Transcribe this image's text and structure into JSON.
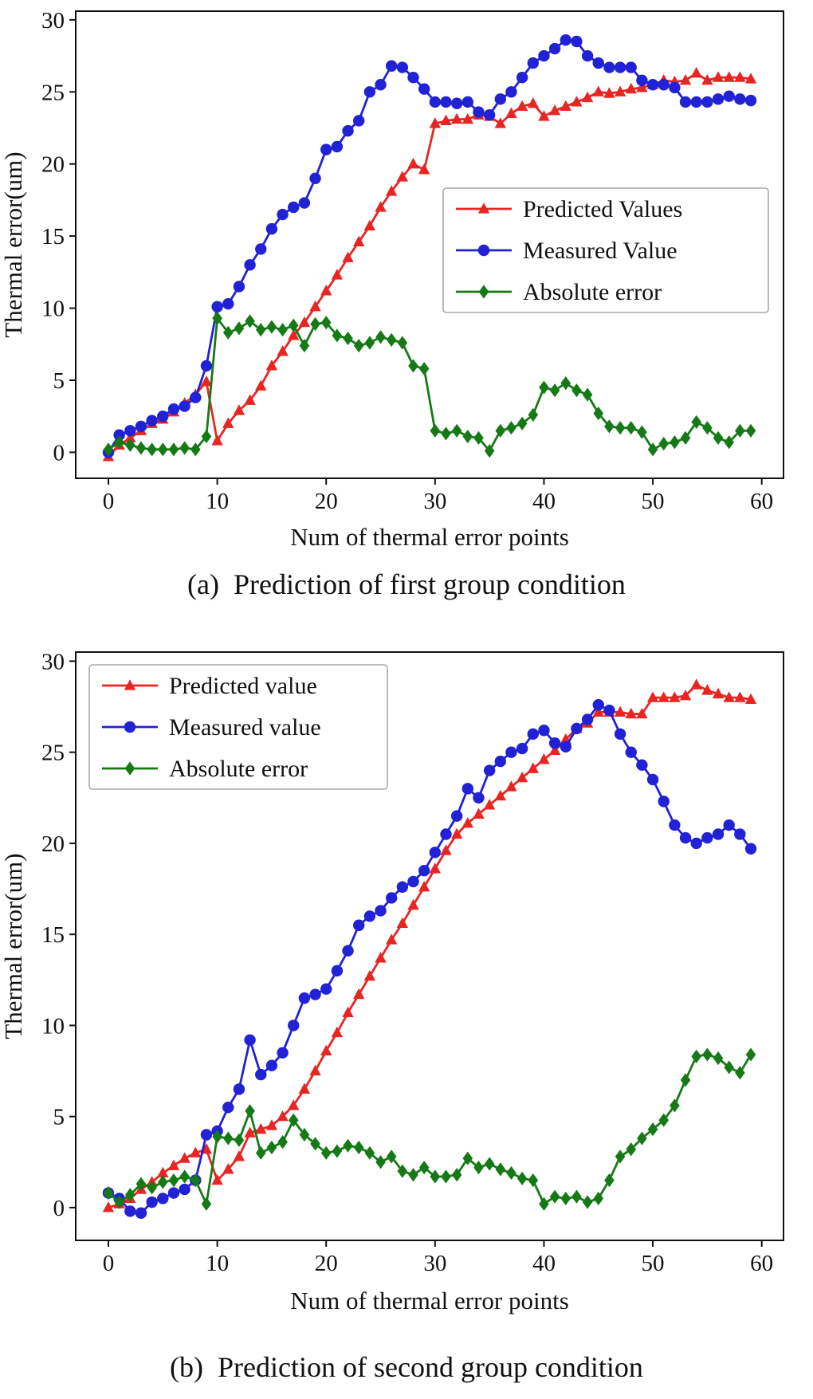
{
  "page": {
    "background": "#ffffff"
  },
  "chart_data": [
    {
      "id": "first-group",
      "type": "line",
      "caption": "(a)  Prediction of first group condition",
      "xlabel": "Num of thermal error points",
      "ylabel": "Thermal error(um)",
      "xlim": [
        -3,
        62
      ],
      "ylim": [
        -1.8,
        30.6
      ],
      "xticks": [
        0,
        10,
        20,
        30,
        40,
        50,
        60
      ],
      "yticks": [
        0,
        5,
        10,
        15,
        20,
        25,
        30
      ],
      "grid": false,
      "x_start": 0,
      "x_step": 1,
      "n_points": 60,
      "legend_position": "upper right",
      "series": [
        {
          "id": "predicted",
          "name": "Predicted Values",
          "color": "#e82522",
          "marker": "triangle",
          "values": [
            -0.3,
            0.5,
            1.0,
            1.5,
            2.0,
            2.3,
            2.8,
            3.4,
            4.0,
            4.9,
            0.8,
            2.0,
            2.9,
            3.6,
            4.6,
            6.0,
            7.0,
            8.1,
            9.0,
            10.1,
            11.2,
            12.3,
            13.5,
            14.6,
            15.7,
            17.0,
            18.1,
            19.1,
            20.0,
            19.6,
            22.8,
            23.0,
            23.1,
            23.1,
            23.4,
            23.3,
            22.8,
            23.5,
            24.0,
            24.2,
            23.3,
            23.7,
            24.0,
            24.3,
            24.6,
            25.0,
            24.9,
            25.0,
            25.2,
            25.3,
            25.5,
            25.8,
            25.7,
            25.8,
            26.3,
            25.8,
            26.0,
            26.0,
            26.0,
            25.9
          ]
        },
        {
          "id": "measured",
          "name": "Measured Value",
          "color": "#2121d6",
          "marker": "circle",
          "values": [
            0.0,
            1.2,
            1.5,
            1.8,
            2.2,
            2.5,
            3.0,
            3.2,
            3.8,
            6.0,
            10.1,
            10.3,
            11.5,
            13.0,
            14.1,
            15.5,
            16.5,
            17.0,
            17.3,
            19.0,
            21.0,
            21.2,
            22.3,
            23.0,
            25.0,
            25.5,
            26.8,
            26.7,
            26.0,
            25.2,
            24.3,
            24.3,
            24.2,
            24.3,
            23.6,
            23.4,
            24.5,
            25.0,
            26.0,
            27.0,
            27.5,
            28.0,
            28.6,
            28.5,
            27.5,
            27.0,
            26.7,
            26.7,
            26.7,
            25.8,
            25.5,
            25.5,
            25.3,
            24.3,
            24.3,
            24.3,
            24.5,
            24.7,
            24.5,
            24.4
          ]
        },
        {
          "id": "abs-error",
          "name": "Absolute error",
          "color": "#157a15",
          "marker": "diamond",
          "values": [
            0.2,
            0.7,
            0.5,
            0.3,
            0.2,
            0.2,
            0.2,
            0.3,
            0.2,
            1.1,
            9.3,
            8.3,
            8.6,
            9.1,
            8.5,
            8.7,
            8.5,
            8.8,
            7.4,
            8.9,
            9.0,
            8.1,
            7.9,
            7.4,
            7.6,
            8.0,
            7.8,
            7.6,
            6.0,
            5.8,
            1.5,
            1.3,
            1.5,
            1.1,
            1.0,
            0.1,
            1.5,
            1.7,
            2.0,
            2.6,
            4.5,
            4.3,
            4.8,
            4.3,
            4.0,
            2.7,
            1.8,
            1.7,
            1.7,
            1.4,
            0.2,
            0.6,
            0.7,
            1.0,
            2.1,
            1.7,
            1.0,
            0.7,
            1.5,
            1.5
          ]
        }
      ]
    },
    {
      "id": "second-group",
      "type": "line",
      "caption": "(b)  Prediction of second group condition",
      "xlabel": "Num of thermal error points",
      "ylabel": "Thermal error(um)",
      "xlim": [
        -3,
        62
      ],
      "ylim": [
        -1.8,
        30.5
      ],
      "xticks": [
        0,
        10,
        20,
        30,
        40,
        50,
        60
      ],
      "yticks": [
        0,
        5,
        10,
        15,
        20,
        25,
        30
      ],
      "grid": false,
      "x_start": 0,
      "x_step": 1,
      "n_points": 60,
      "legend_position": "upper left",
      "series": [
        {
          "id": "predicted",
          "name": "Predicted value",
          "color": "#e82522",
          "marker": "triangle",
          "values": [
            0.0,
            0.2,
            0.5,
            1.0,
            1.4,
            1.9,
            2.3,
            2.7,
            3.0,
            3.2,
            1.5,
            2.1,
            2.8,
            4.1,
            4.3,
            4.5,
            5.0,
            5.6,
            6.5,
            7.5,
            8.6,
            9.6,
            10.7,
            11.7,
            12.7,
            13.7,
            14.7,
            15.6,
            16.6,
            17.6,
            18.6,
            19.6,
            20.5,
            21.1,
            21.6,
            22.1,
            22.6,
            23.1,
            23.6,
            24.1,
            24.6,
            25.1,
            25.7,
            26.3,
            26.6,
            27.2,
            27.2,
            27.2,
            27.1,
            27.1,
            28.0,
            28.0,
            28.0,
            28.1,
            28.7,
            28.4,
            28.2,
            28.0,
            28.0,
            27.9
          ]
        },
        {
          "id": "measured",
          "name": "Measured value",
          "color": "#2121d6",
          "marker": "circle",
          "values": [
            0.8,
            0.5,
            -0.2,
            -0.3,
            0.3,
            0.5,
            0.8,
            1.0,
            1.5,
            4.0,
            4.2,
            5.5,
            6.5,
            9.2,
            7.3,
            7.8,
            8.5,
            10.0,
            11.5,
            11.7,
            12.0,
            13.0,
            14.1,
            15.5,
            16.0,
            16.3,
            17.0,
            17.6,
            17.9,
            18.5,
            19.5,
            20.5,
            21.5,
            23.0,
            22.5,
            24.0,
            24.5,
            25.0,
            25.2,
            26.0,
            26.2,
            25.5,
            25.3,
            26.3,
            26.8,
            27.6,
            27.3,
            26.0,
            25.0,
            24.3,
            23.5,
            22.3,
            21.0,
            20.3,
            20.0,
            20.3,
            20.5,
            21.0,
            20.5,
            19.7
          ]
        },
        {
          "id": "abs-error",
          "name": "Absolute error",
          "color": "#157a15",
          "marker": "diamond",
          "values": [
            0.8,
            0.3,
            0.7,
            1.3,
            1.1,
            1.4,
            1.5,
            1.7,
            1.5,
            0.2,
            3.9,
            3.8,
            3.7,
            5.3,
            3.0,
            3.3,
            3.6,
            4.8,
            4.0,
            3.5,
            3.0,
            3.1,
            3.4,
            3.3,
            3.0,
            2.5,
            2.8,
            2.0,
            1.8,
            2.2,
            1.7,
            1.7,
            1.8,
            2.7,
            2.2,
            2.4,
            2.1,
            1.9,
            1.6,
            1.5,
            0.2,
            0.6,
            0.5,
            0.6,
            0.3,
            0.5,
            1.5,
            2.8,
            3.2,
            3.8,
            4.3,
            4.8,
            5.6,
            7.0,
            8.3,
            8.4,
            8.2,
            7.7,
            7.4,
            8.4
          ]
        }
      ]
    }
  ]
}
